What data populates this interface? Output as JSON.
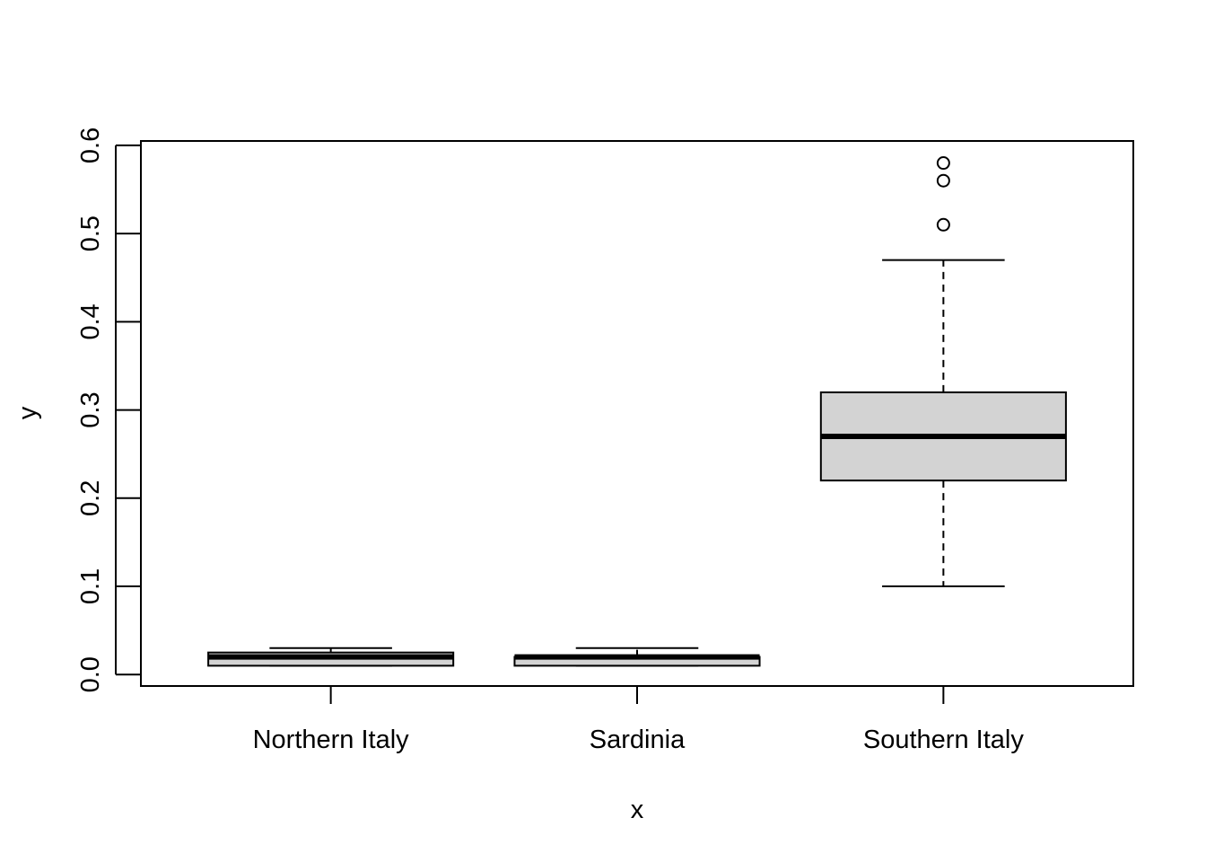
{
  "chart_data": {
    "type": "boxplot",
    "title": "",
    "xlabel": "x",
    "ylabel": "y",
    "ylim": [
      -0.013,
      0.605
    ],
    "yticks": [
      "0.0",
      "0.1",
      "0.2",
      "0.3",
      "0.4",
      "0.5",
      "0.6"
    ],
    "yticks_values": [
      0.0,
      0.1,
      0.2,
      0.3,
      0.4,
      0.5,
      0.6
    ],
    "grid": false,
    "legend": "none",
    "categories": [
      "Northern Italy",
      "Sardinia",
      "Southern Italy"
    ],
    "boxes": [
      {
        "category": "Northern Italy",
        "whisker_low": 0.01,
        "q1": 0.01,
        "median": 0.02,
        "q3": 0.025,
        "whisker_high": 0.03,
        "outliers": []
      },
      {
        "category": "Sardinia",
        "whisker_low": 0.01,
        "q1": 0.01,
        "median": 0.02,
        "q3": 0.02,
        "whisker_high": 0.03,
        "outliers": []
      },
      {
        "category": "Southern Italy",
        "whisker_low": 0.1,
        "q1": 0.22,
        "median": 0.27,
        "q3": 0.32,
        "whisker_high": 0.47,
        "outliers": [
          0.51,
          0.56,
          0.58
        ]
      }
    ],
    "colors": {
      "box_fill": "#d3d3d3",
      "stroke": "#000000"
    }
  }
}
